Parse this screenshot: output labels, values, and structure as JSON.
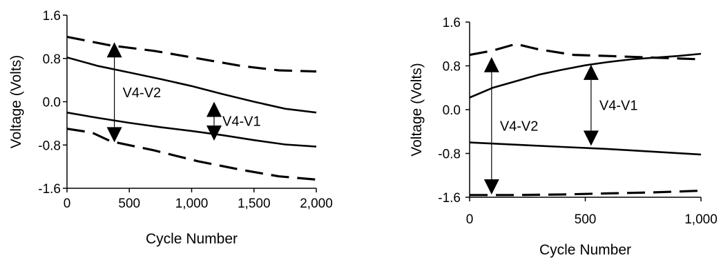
{
  "chart_data": [
    {
      "type": "line",
      "title": "",
      "xlabel": "Cycle Number",
      "ylabel": "Voltage (Volts)",
      "xlim": [
        0,
        2000
      ],
      "ylim": [
        -1.6,
        1.6
      ],
      "xticks": [
        "0",
        "500",
        "1,000",
        "1,500",
        "2,000"
      ],
      "yticks": [
        "1.6",
        "0.8",
        "0.0",
        "-0.8",
        "-1.6"
      ],
      "grid": false,
      "legend": "none",
      "series": [
        {
          "style": "dashed",
          "x": [
            0,
            350,
            700,
            1050,
            1400,
            1700,
            2000
          ],
          "y": [
            1.2,
            1.04,
            0.94,
            0.8,
            0.66,
            0.58,
            0.56
          ]
        },
        {
          "style": "solid",
          "x": [
            0,
            250,
            500,
            750,
            1000,
            1250,
            1500,
            1750,
            2000
          ],
          "y": [
            0.82,
            0.66,
            0.54,
            0.42,
            0.29,
            0.14,
            0.0,
            -0.13,
            -0.2
          ]
        },
        {
          "style": "solid",
          "x": [
            0,
            250,
            500,
            750,
            1000,
            1250,
            1500,
            1750,
            2000
          ],
          "y": [
            -0.2,
            -0.3,
            -0.39,
            -0.47,
            -0.54,
            -0.62,
            -0.71,
            -0.79,
            -0.83
          ]
        },
        {
          "style": "dashed",
          "x": [
            0,
            200,
            350,
            700,
            1050,
            1400,
            1700,
            2000
          ],
          "y": [
            -0.5,
            -0.57,
            -0.73,
            -0.9,
            -1.1,
            -1.26,
            -1.38,
            -1.44
          ]
        }
      ],
      "annotations": [
        {
          "text": "V4-V2",
          "x": 380,
          "y_from": 1.1,
          "y_to": -0.75
        },
        {
          "text": "V4-V1",
          "x": 1180,
          "y_from": 0.0,
          "y_to": -0.72
        }
      ]
    },
    {
      "type": "line",
      "title": "",
      "xlabel": "Cycle Number",
      "ylabel": "Voltage (Volts)",
      "xlim": [
        0,
        1000
      ],
      "ylim": [
        -1.6,
        1.6
      ],
      "xticks": [
        "0",
        "500",
        "1,000"
      ],
      "yticks": [
        "1.6",
        "0.8",
        "0.0",
        "-0.8",
        "-1.6"
      ],
      "grid": false,
      "legend": "none",
      "series": [
        {
          "style": "dashed",
          "x": [
            0,
            100,
            200,
            300,
            450,
            600,
            800,
            1000
          ],
          "y": [
            1.0,
            1.08,
            1.2,
            1.1,
            1.0,
            0.98,
            0.95,
            0.92
          ]
        },
        {
          "style": "solid",
          "x": [
            0,
            100,
            200,
            300,
            400,
            500,
            600,
            700,
            800,
            900,
            1000
          ],
          "y": [
            0.22,
            0.4,
            0.52,
            0.64,
            0.73,
            0.81,
            0.87,
            0.92,
            0.95,
            0.98,
            1.02
          ]
        },
        {
          "style": "solid",
          "x": [
            0,
            200,
            400,
            600,
            800,
            1000
          ],
          "y": [
            -0.6,
            -0.64,
            -0.68,
            -0.72,
            -0.77,
            -0.82
          ]
        },
        {
          "style": "dashed",
          "x": [
            0,
            200,
            400,
            600,
            800,
            1000
          ],
          "y": [
            -1.56,
            -1.56,
            -1.55,
            -1.53,
            -1.51,
            -1.48
          ]
        }
      ],
      "annotations": [
        {
          "text": "V4-V2",
          "x": 95,
          "y_from": 0.96,
          "y_to": -1.55
        },
        {
          "text": "V4-V1",
          "x": 525,
          "y_from": 0.82,
          "y_to": -0.66
        }
      ]
    }
  ]
}
